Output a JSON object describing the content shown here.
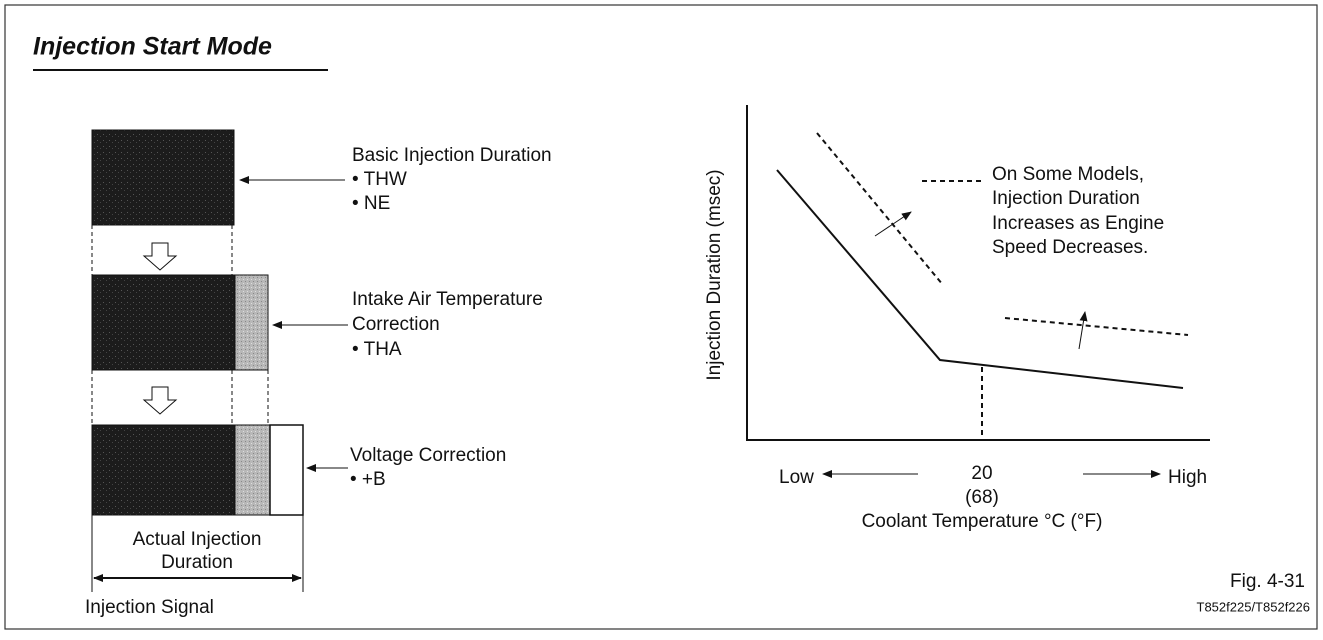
{
  "title": "Injection Start Mode",
  "left_diagram": {
    "basic": {
      "label": "Basic Injection Duration",
      "items": [
        "• THW",
        "• NE"
      ]
    },
    "intake": {
      "label_lines": [
        "Intake Air Temperature",
        "Correction"
      ],
      "items": [
        "• THA"
      ]
    },
    "voltage": {
      "label": "Voltage Correction",
      "items": [
        "• +B"
      ]
    },
    "actual": {
      "label_lines": [
        "Actual Injection",
        "Duration"
      ]
    },
    "signal": "Injection Signal"
  },
  "right_graph": {
    "y_axis_label": "Injection Duration (msec)",
    "legend_lines": [
      "On Some Models,",
      "Injection Duration",
      "Increases as Engine",
      "Speed Decreases."
    ],
    "x_low": "Low",
    "x_mid": "20",
    "x_mid_f": "(68)",
    "x_high": "High",
    "x_axis_label": "Coolant Temperature °C (°F)"
  },
  "figure": "Fig. 4-31",
  "code": "T852f225/T852f226"
}
